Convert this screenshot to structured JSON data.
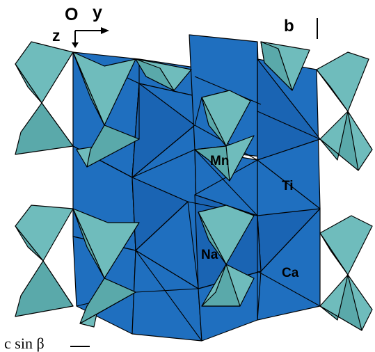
{
  "axes": {
    "origin": "O",
    "y": "y",
    "z": "z",
    "b": "b",
    "c_scale": "c sin β"
  },
  "atoms": {
    "mn": "Mn",
    "ti": "Ti",
    "na": "Na",
    "ca": "Ca"
  },
  "colors": {
    "octahedra": "#1f6fbf",
    "tetrahedra": "#6fbcbc",
    "outline": "#000000"
  }
}
